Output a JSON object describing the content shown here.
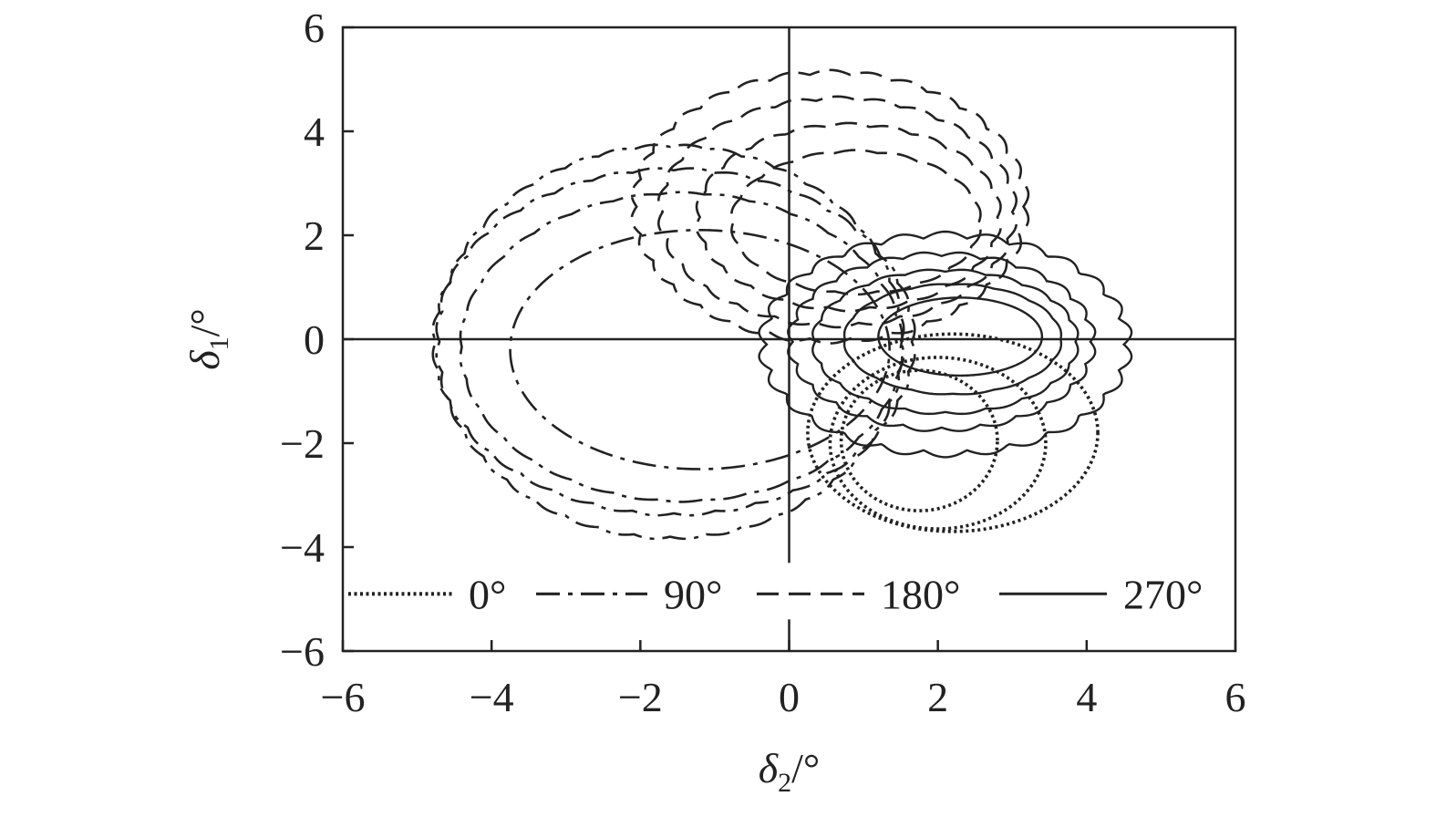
{
  "chart_data": {
    "type": "line",
    "xlabel": "δ2/°",
    "ylabel": "δ1/°",
    "xlim": [
      -6,
      6
    ],
    "ylim": [
      -6,
      6
    ],
    "xticks": [
      -6,
      -4,
      -2,
      0,
      2,
      4,
      6
    ],
    "yticks": [
      -6,
      -4,
      -2,
      0,
      2,
      4,
      6
    ],
    "xtick_labels": [
      "−6",
      "−4",
      "−2",
      "0",
      "2",
      "4",
      "6"
    ],
    "ytick_labels": [
      "−6",
      "−4",
      "−2",
      "0",
      "2",
      "4",
      "6"
    ],
    "zero_lines": true,
    "grid": false,
    "legend": {
      "placement": "bottom",
      "orientation": "horizontal"
    },
    "series": [
      {
        "name": "0°",
        "style": "dotted",
        "color": "#222222",
        "loops": [
          {
            "cx": 1.75,
            "cy": -1.95,
            "rx": 1.05,
            "ry": 1.35,
            "wave_amp": 0,
            "wave_n": 0
          },
          {
            "cx": 2.0,
            "cy": -2.0,
            "rx": 1.45,
            "ry": 1.65,
            "wave_amp": 0,
            "wave_n": 0
          },
          {
            "cx": 2.2,
            "cy": -1.8,
            "rx": 1.95,
            "ry": 1.9,
            "wave_amp": 0,
            "wave_n": 0
          }
        ]
      },
      {
        "name": "90°",
        "style": "dashdot",
        "color": "#222222",
        "loops": [
          {
            "cx": -1.2,
            "cy": -0.2,
            "rx": 2.55,
            "ry": 2.3,
            "wave_amp": 0,
            "wave_n": 0
          },
          {
            "cx": -1.45,
            "cy": -0.15,
            "rx": 2.95,
            "ry": 2.95,
            "wave_amp": 0.03,
            "wave_n": 30
          },
          {
            "cx": -1.55,
            "cy": -0.05,
            "rx": 3.2,
            "ry": 3.3,
            "wave_amp": 0.05,
            "wave_n": 36
          },
          {
            "cx": -1.6,
            "cy": -0.05,
            "rx": 3.1,
            "ry": 3.75,
            "wave_amp": 0.05,
            "wave_n": 40
          }
        ]
      },
      {
        "name": "180°",
        "style": "dashed",
        "color": "#222222",
        "loops": [
          {
            "cx": 0.9,
            "cy": 2.25,
            "rx": 1.65,
            "ry": 1.35,
            "wave_amp": 0.04,
            "wave_n": 18
          },
          {
            "cx": 0.8,
            "cy": 2.35,
            "rx": 2.0,
            "ry": 1.75,
            "wave_amp": 0.06,
            "wave_n": 22
          },
          {
            "cx": 0.65,
            "cy": 2.45,
            "rx": 2.35,
            "ry": 2.15,
            "wave_amp": 0.07,
            "wave_n": 26
          },
          {
            "cx": 0.55,
            "cy": 2.55,
            "rx": 2.6,
            "ry": 2.55,
            "wave_amp": 0.08,
            "wave_n": 30
          }
        ]
      },
      {
        "name": "270°",
        "style": "solid",
        "color": "#222222",
        "loops": [
          {
            "cx": 2.3,
            "cy": 0.05,
            "rx": 1.1,
            "ry": 0.75,
            "wave_amp": 0,
            "wave_n": 0
          },
          {
            "cx": 2.2,
            "cy": 0.0,
            "rx": 1.45,
            "ry": 1.05,
            "wave_amp": 0.02,
            "wave_n": 16
          },
          {
            "cx": 2.1,
            "cy": -0.05,
            "rx": 1.75,
            "ry": 1.35,
            "wave_amp": 0.05,
            "wave_n": 20
          },
          {
            "cx": 2.05,
            "cy": -0.05,
            "rx": 2.0,
            "ry": 1.65,
            "wave_amp": 0.08,
            "wave_n": 24
          },
          {
            "cx": 2.1,
            "cy": -0.1,
            "rx": 2.4,
            "ry": 2.05,
            "wave_amp": 0.12,
            "wave_n": 26
          }
        ]
      }
    ]
  }
}
